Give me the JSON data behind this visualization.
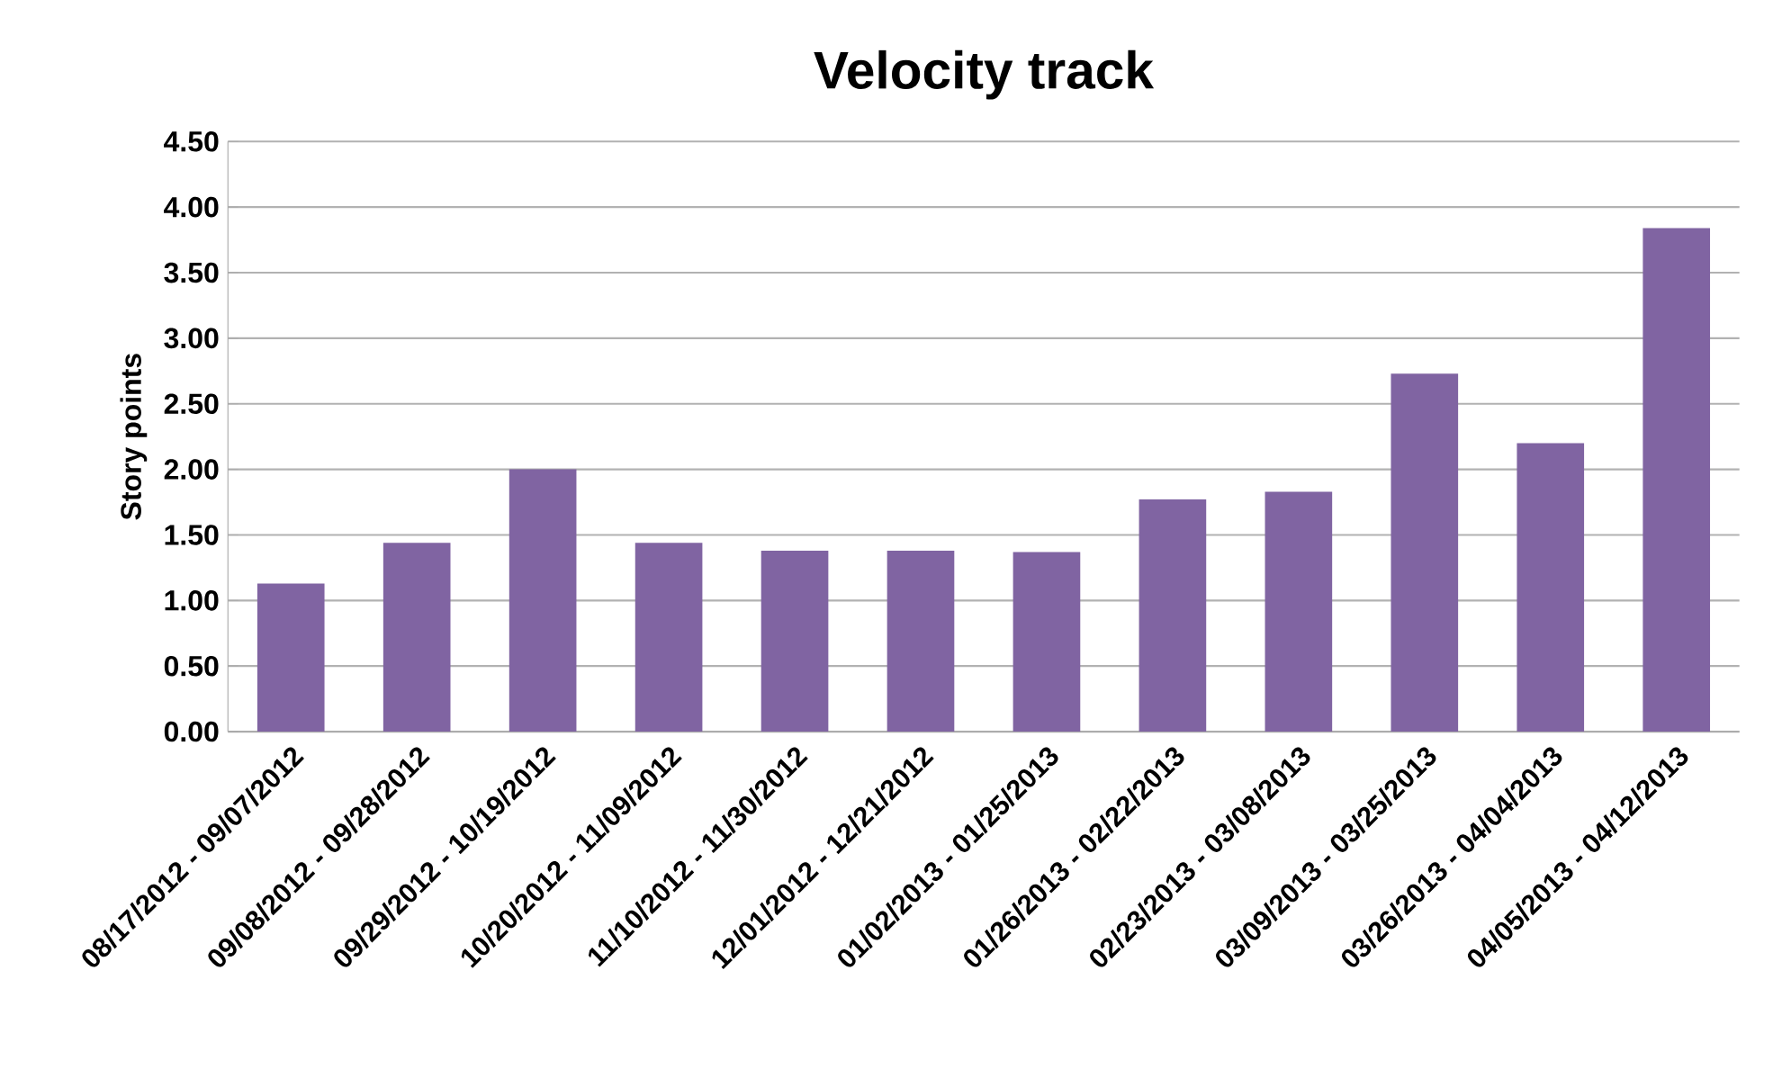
{
  "chart_data": {
    "type": "bar",
    "title": "Velocity track",
    "ylabel": "Story points",
    "categories": [
      "08/17/2012 - 09/07/2012",
      "09/08/2012 - 09/28/2012",
      "09/29/2012 - 10/19/2012",
      "10/20/2012 - 11/09/2012",
      "11/10/2012 - 11/30/2012",
      "12/01/2012 - 12/21/2012",
      "01/02/2013 - 01/25/2013",
      "01/26/2013 - 02/22/2013",
      "02/23/2013 - 03/08/2013",
      "03/09/2013 - 03/25/2013",
      "03/26/2013 - 04/04/2013",
      "04/05/2013 - 04/12/2013"
    ],
    "values": [
      1.13,
      1.44,
      2.0,
      1.44,
      1.38,
      1.38,
      1.37,
      1.77,
      1.83,
      2.73,
      2.2,
      3.84
    ],
    "color": "#8064a2",
    "ylim": [
      0,
      4.5
    ],
    "yticks": [
      {
        "value": 0,
        "label": "0.00"
      },
      {
        "value": 0.5,
        "label": "0.50"
      },
      {
        "value": 1,
        "label": "1.00"
      },
      {
        "value": 1.5,
        "label": "1.50"
      },
      {
        "value": 2,
        "label": "2.00"
      },
      {
        "value": 2.5,
        "label": "2.50"
      },
      {
        "value": 3,
        "label": "3.00"
      },
      {
        "value": 3.5,
        "label": "3.50"
      },
      {
        "value": 4,
        "label": "4.00"
      },
      {
        "value": 4.5,
        "label": "4.50"
      }
    ],
    "grid": "y"
  }
}
